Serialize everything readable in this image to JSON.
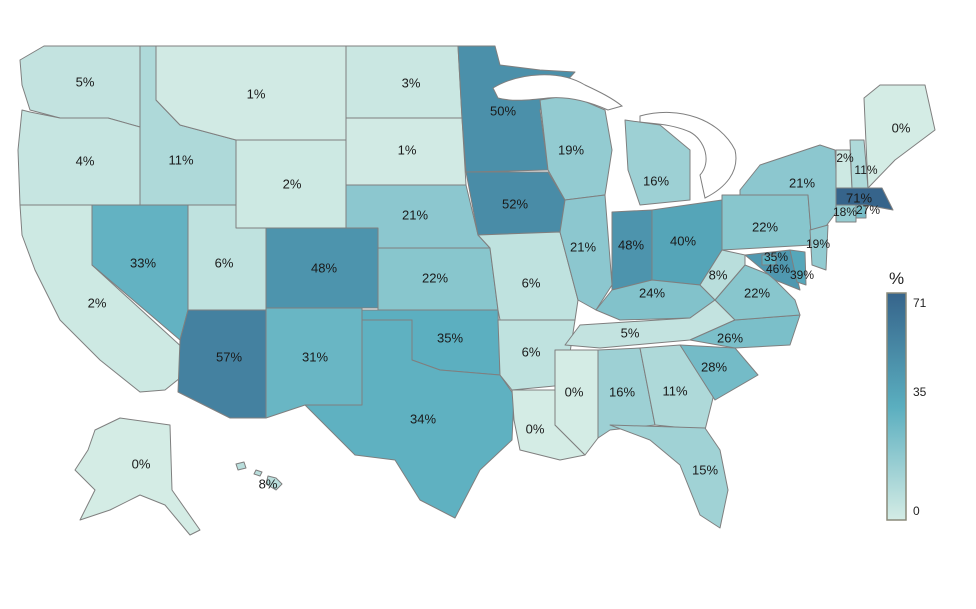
{
  "colors": {
    "low": "#d4ece5",
    "mid": "#5aaebf",
    "high": "#36648b",
    "border": "#7f7f7f",
    "great_lakes": "#ffffff"
  },
  "legend": {
    "title": "%",
    "ticks": [
      "71",
      "35",
      "0"
    ],
    "min": 0,
    "max": 71
  },
  "states": [
    {
      "id": "WA",
      "label": "5%",
      "value": 5
    },
    {
      "id": "OR",
      "label": "4%",
      "value": 4
    },
    {
      "id": "CA",
      "label": "2%",
      "value": 2
    },
    {
      "id": "ID",
      "label": "11%",
      "value": 11
    },
    {
      "id": "NV",
      "label": "33%",
      "value": 33
    },
    {
      "id": "MT",
      "label": "1%",
      "value": 1
    },
    {
      "id": "WY",
      "label": "2%",
      "value": 2
    },
    {
      "id": "UT",
      "label": "6%",
      "value": 6
    },
    {
      "id": "AZ",
      "label": "57%",
      "value": 57
    },
    {
      "id": "CO",
      "label": "48%",
      "value": 48
    },
    {
      "id": "NM",
      "label": "31%",
      "value": 31
    },
    {
      "id": "ND",
      "label": "3%",
      "value": 3
    },
    {
      "id": "SD",
      "label": "1%",
      "value": 1
    },
    {
      "id": "NE",
      "label": "21%",
      "value": 21
    },
    {
      "id": "KS",
      "label": "22%",
      "value": 22
    },
    {
      "id": "OK",
      "label": "35%",
      "value": 35
    },
    {
      "id": "TX",
      "label": "34%",
      "value": 34
    },
    {
      "id": "MN",
      "label": "50%",
      "value": 50
    },
    {
      "id": "IA",
      "label": "52%",
      "value": 52
    },
    {
      "id": "MO",
      "label": "6%",
      "value": 6
    },
    {
      "id": "AR",
      "label": "6%",
      "value": 6
    },
    {
      "id": "LA",
      "label": "0%",
      "value": 0
    },
    {
      "id": "WI",
      "label": "19%",
      "value": 19
    },
    {
      "id": "IL",
      "label": "21%",
      "value": 21
    },
    {
      "id": "MI",
      "label": "16%",
      "value": 16
    },
    {
      "id": "IN",
      "label": "48%",
      "value": 48
    },
    {
      "id": "OH",
      "label": "40%",
      "value": 40
    },
    {
      "id": "KY",
      "label": "24%",
      "value": 24
    },
    {
      "id": "TN",
      "label": "5%",
      "value": 5
    },
    {
      "id": "MS",
      "label": "0%",
      "value": 0
    },
    {
      "id": "AL",
      "label": "16%",
      "value": 16
    },
    {
      "id": "GA",
      "label": "11%",
      "value": 11
    },
    {
      "id": "FL",
      "label": "15%",
      "value": 15
    },
    {
      "id": "SC",
      "label": "28%",
      "value": 28
    },
    {
      "id": "NC",
      "label": "26%",
      "value": 26
    },
    {
      "id": "VA",
      "label": "22%",
      "value": 22
    },
    {
      "id": "WV",
      "label": "8%",
      "value": 8
    },
    {
      "id": "PA",
      "label": "22%",
      "value": 22
    },
    {
      "id": "NY",
      "label": "21%",
      "value": 21
    },
    {
      "id": "NJ",
      "label": "19%",
      "value": 19
    },
    {
      "id": "MD",
      "label": "46%",
      "value": 46
    },
    {
      "id": "DE",
      "label": "39%",
      "value": 39
    },
    {
      "id": "DC",
      "label": "35%",
      "value": 35
    },
    {
      "id": "CT",
      "label": "18%",
      "value": 18
    },
    {
      "id": "RI",
      "label": "27%",
      "value": 27
    },
    {
      "id": "MA",
      "label": "71%",
      "value": 71
    },
    {
      "id": "VT",
      "label": "2%",
      "value": 2
    },
    {
      "id": "NH",
      "label": "11%",
      "value": 11
    },
    {
      "id": "ME",
      "label": "0%",
      "value": 0
    },
    {
      "id": "AK",
      "label": "0%",
      "value": 0
    },
    {
      "id": "HI",
      "label": "8%",
      "value": 8
    }
  ]
}
